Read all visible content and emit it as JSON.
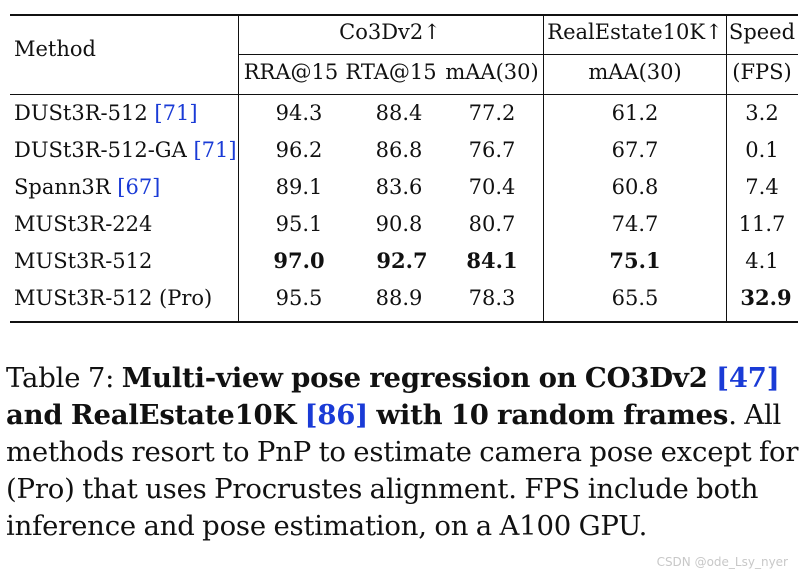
{
  "table": {
    "header": {
      "method": "Method",
      "group_co3d": "Co3Dv2↑",
      "group_re10k": "RealEstate10K↑",
      "speed": "Speed",
      "sub_rra": "RRA@15",
      "sub_rta": "RTA@15",
      "sub_maa": "mAA(30)",
      "sub_re10k_maa": "mAA(30)",
      "sub_fps": "(FPS)"
    },
    "rows": [
      {
        "method": "DUSt3R-512",
        "ref": "[71]",
        "rra": "94.3",
        "rta": "88.4",
        "maa": "77.2",
        "re_maa": "61.2",
        "fps": "3.2"
      },
      {
        "method": "DUSt3R-512-GA",
        "ref": "[71]",
        "rra": "96.2",
        "rta": "86.8",
        "maa": "76.7",
        "re_maa": "67.7",
        "fps": "0.1"
      },
      {
        "method": "Spann3R",
        "ref": "[67]",
        "rra": "89.1",
        "rta": "83.6",
        "maa": "70.4",
        "re_maa": "60.8",
        "fps": "7.4"
      },
      {
        "method": "MUSt3R-224",
        "ref": "",
        "rra": "95.1",
        "rta": "90.8",
        "maa": "80.7",
        "re_maa": "74.7",
        "fps": "11.7"
      },
      {
        "method": "MUSt3R-512",
        "ref": "",
        "rra": "97.0",
        "rta": "92.7",
        "maa": "84.1",
        "re_maa": "75.1",
        "fps": "4.1"
      },
      {
        "method": "MUSt3R-512 (Pro)",
        "ref": "",
        "rra": "95.5",
        "rta": "88.9",
        "maa": "78.3",
        "re_maa": "65.5",
        "fps": "32.9"
      }
    ]
  },
  "caption": {
    "label": "Table 7: ",
    "bold_1": "Multi-view pose regression on CO3Dv2 ",
    "ref_1": "[47]",
    "bold_2": " and RealEstate10K ",
    "ref_2": "[86]",
    "bold_3": " with 10 random frames",
    "rest": ". All methods resort to PnP to estimate camera pose except for (Pro) that uses Procrustes alignment. FPS include both inference and pose estimation, on a A100 GPU."
  },
  "watermark": "CSDN @ode_Lsy_nyer"
}
